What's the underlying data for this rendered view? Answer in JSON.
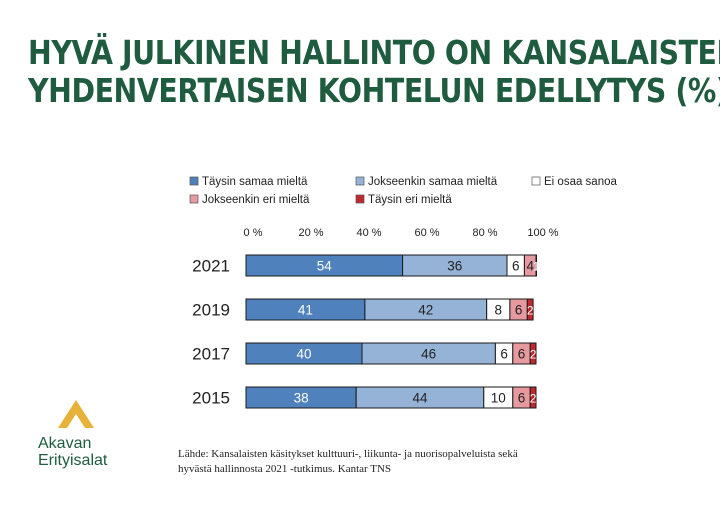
{
  "title": {
    "line1": "HYVÄ JULKINEN HALLINTO ON KANSALAISTEN",
    "line2": "YHDENVERTAISEN KOHTELUN EDELLYTYS (%)"
  },
  "source": {
    "line1": "Lähde: Kansalaisten käsitykset kulttuuri-, liikunta- ja nuorisopalveluista sekä",
    "line2": "hyvästä hallinnosta 2021 -tutkimus. Kantar TNS"
  },
  "logo": {
    "line1": "Akavan",
    "line2": "Erityisalat",
    "icon": "chevron-up-logo",
    "color": "#e8b23a"
  },
  "chart_data": {
    "type": "bar",
    "orientation": "horizontal",
    "stacked": true,
    "categories": [
      "2021",
      "2019",
      "2017",
      "2015"
    ],
    "series": [
      {
        "name": "Täysin samaa mieltä",
        "color": "#4f81bd",
        "label_color": "#ffffff",
        "values": [
          54,
          41,
          40,
          38
        ]
      },
      {
        "name": "Jokseenkin samaa mieltä",
        "color": "#95b3d7",
        "label_color": "#222222",
        "values": [
          36,
          42,
          46,
          44
        ]
      },
      {
        "name": "Ei osaa sanoa",
        "color": "#ffffff",
        "label_color": "#222222",
        "values": [
          6,
          8,
          6,
          10
        ]
      },
      {
        "name": "Jokseenkin eri mieltä",
        "color": "#e69aa0",
        "label_color": "#222222",
        "values": [
          4,
          6,
          6,
          6
        ]
      },
      {
        "name": "Täysin eri mieltä",
        "color": "#c0282f",
        "label_color": "#ffffff",
        "values": [
          1,
          2,
          2,
          2
        ]
      }
    ],
    "data_labels": [
      [
        "54",
        "36",
        "6",
        "4",
        "1"
      ],
      [
        "41",
        "42",
        "8",
        "6",
        "2"
      ],
      [
        "40",
        "46",
        "6",
        "6",
        "2"
      ],
      [
        "38",
        "44",
        "10",
        "6",
        "2"
      ]
    ],
    "xlim": [
      0,
      100
    ],
    "xticks": [
      "0 %",
      "20 %",
      "40 %",
      "60 %",
      "80 %",
      "100 %"
    ],
    "legend_position": "top",
    "grid": false
  }
}
